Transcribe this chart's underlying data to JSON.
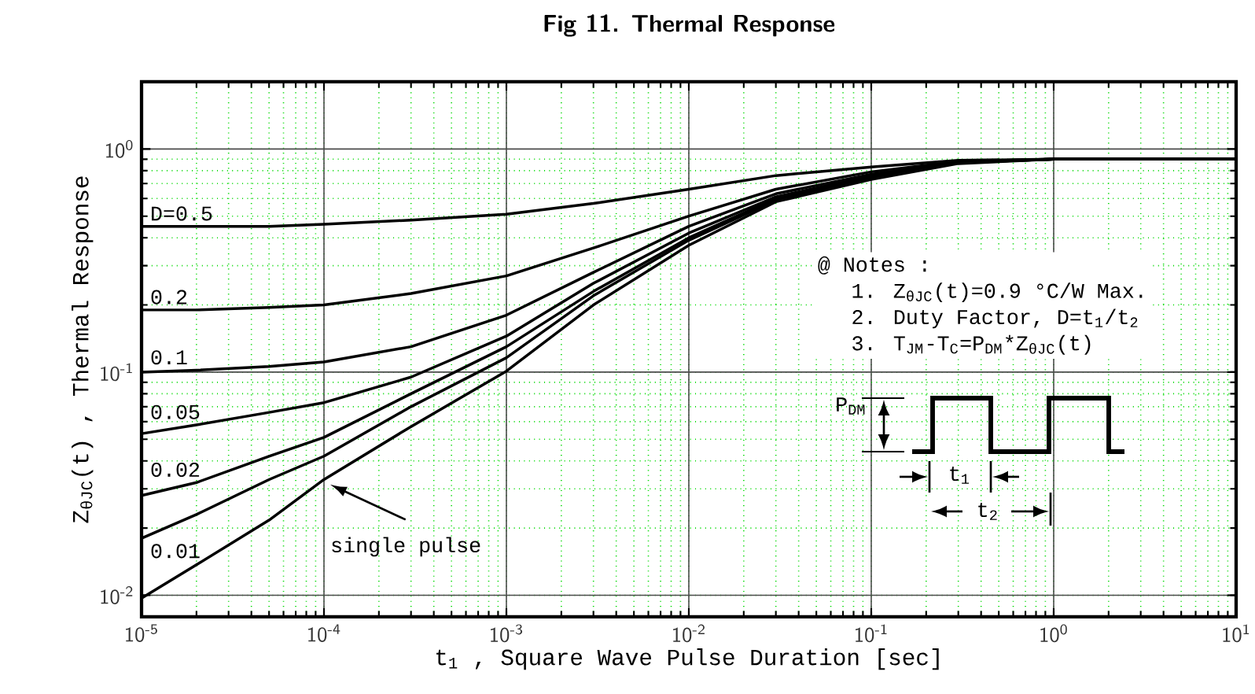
{
  "chart_data": {
    "type": "line",
    "title": "Fig 11.  Thermal Response",
    "xlabel": "t$_{1}$ , Square Wave Pulse Duration   [sec]",
    "ylabel": "Z$_{θJC}$(t) , Thermal Response",
    "log": "xy",
    "grid": true,
    "xlim": [
      1e-05,
      10
    ],
    "ylim": [
      0.008,
      2
    ],
    "xticks": [
      {
        "value": 1e-05,
        "label": "10$^{-5}$"
      },
      {
        "value": 0.0001,
        "label": "10$^{-4}$"
      },
      {
        "value": 0.001,
        "label": "10$^{-3}$"
      },
      {
        "value": 0.01,
        "label": "10$^{-2}$"
      },
      {
        "value": 0.1,
        "label": "10$^{-1}$"
      },
      {
        "value": 1,
        "label": "10$^{0}$"
      },
      {
        "value": 10,
        "label": "10$^{1}$"
      }
    ],
    "yticks": [
      {
        "value": 0.01,
        "label": "10$^{-2}$"
      },
      {
        "value": 0.1,
        "label": "10$^{-1}$"
      },
      {
        "value": 1,
        "label": "10$^{0}$"
      }
    ],
    "x": [
      1e-05,
      2e-05,
      5e-05,
      0.0001,
      0.0003,
      0.001,
      0.003,
      0.01,
      0.03,
      0.1,
      0.3,
      1,
      10
    ],
    "series": [
      {
        "name": "D=0.5",
        "color": "#000000",
        "values": [
          0.45,
          0.45,
          0.45,
          0.46,
          0.48,
          0.51,
          0.57,
          0.66,
          0.76,
          0.83,
          0.89,
          0.9,
          0.9
        ]
      },
      {
        "name": "0.2",
        "color": "#000000",
        "values": [
          0.19,
          0.19,
          0.195,
          0.2,
          0.225,
          0.27,
          0.36,
          0.5,
          0.66,
          0.79,
          0.88,
          0.9,
          0.9
        ]
      },
      {
        "name": "0.1",
        "color": "#000000",
        "values": [
          0.1,
          0.102,
          0.106,
          0.111,
          0.13,
          0.18,
          0.28,
          0.45,
          0.63,
          0.77,
          0.88,
          0.9,
          0.9
        ]
      },
      {
        "name": "0.05",
        "color": "#000000",
        "values": [
          0.053,
          0.058,
          0.066,
          0.073,
          0.095,
          0.145,
          0.25,
          0.42,
          0.61,
          0.76,
          0.87,
          0.9,
          0.9
        ]
      },
      {
        "name": "0.02",
        "color": "#000000",
        "values": [
          0.028,
          0.032,
          0.042,
          0.051,
          0.08,
          0.13,
          0.23,
          0.4,
          0.6,
          0.75,
          0.87,
          0.9,
          0.9
        ]
      },
      {
        "name": "0.01",
        "color": "#000000",
        "values": [
          0.018,
          0.023,
          0.033,
          0.042,
          0.07,
          0.116,
          0.22,
          0.39,
          0.59,
          0.74,
          0.87,
          0.9,
          0.9
        ]
      },
      {
        "name": "single pulse",
        "color": "#000000",
        "values": [
          0.0097,
          0.0137,
          0.0217,
          0.033,
          0.057,
          0.101,
          0.2,
          0.37,
          0.58,
          0.73,
          0.86,
          0.9,
          0.9
        ]
      }
    ],
    "annotations": [
      "@ Notes :",
      "1. Z$_{θJC}$(t)=0.9 °C/W Max.",
      "2. Duty Factor, D=t$_{1}$/t$_{2}$",
      "3. T$_{JM}$-T$_{C}$=P$_{DM}$*Z$_{θJC}$(t)",
      "P$_{DM}$",
      "t$_{1}$",
      "t$_{2}$"
    ]
  }
}
